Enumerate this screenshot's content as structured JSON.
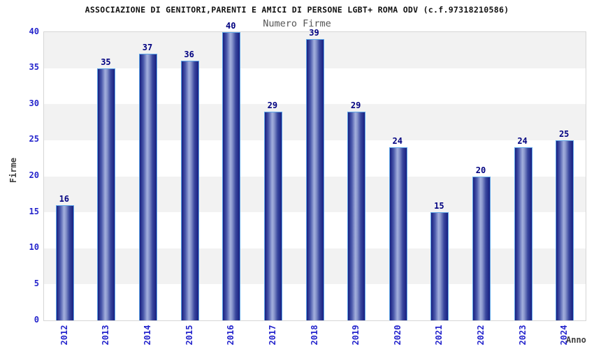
{
  "chart_data": {
    "type": "bar",
    "title": "ASSOCIAZIONE DI GENITORI,PARENTI E AMICI DI PERSONE LGBT+ ROMA ODV (c.f.97318210586)",
    "subtitle": "Numero Firme",
    "xlabel": "Anno",
    "ylabel": "Firme",
    "categories": [
      "2012",
      "2013",
      "2014",
      "2015",
      "2016",
      "2017",
      "2018",
      "2019",
      "2020",
      "2021",
      "2022",
      "2023",
      "2024"
    ],
    "values": [
      16,
      35,
      37,
      36,
      40,
      29,
      39,
      29,
      24,
      15,
      20,
      24,
      25
    ],
    "ylim": [
      0,
      40
    ],
    "ytick_step": 5,
    "yticks": [
      0,
      5,
      10,
      15,
      20,
      25,
      30,
      35,
      40
    ],
    "grid": "alternating-horizontal-bands",
    "legend": "none",
    "colors": {
      "title": "#111111",
      "subtitle": "#555555",
      "tick_label": "#2424cc",
      "value_label": "#000080",
      "axis_title": "#404040",
      "band_gray": "#f2f2f2",
      "band_white": "#ffffff",
      "plot_border": "#d6d6d6",
      "bar_edge": "#5ea6e8",
      "bar_dark": "#181f80",
      "bar_mid": "#4a58ab",
      "bar_light": "#a3afdd"
    }
  }
}
